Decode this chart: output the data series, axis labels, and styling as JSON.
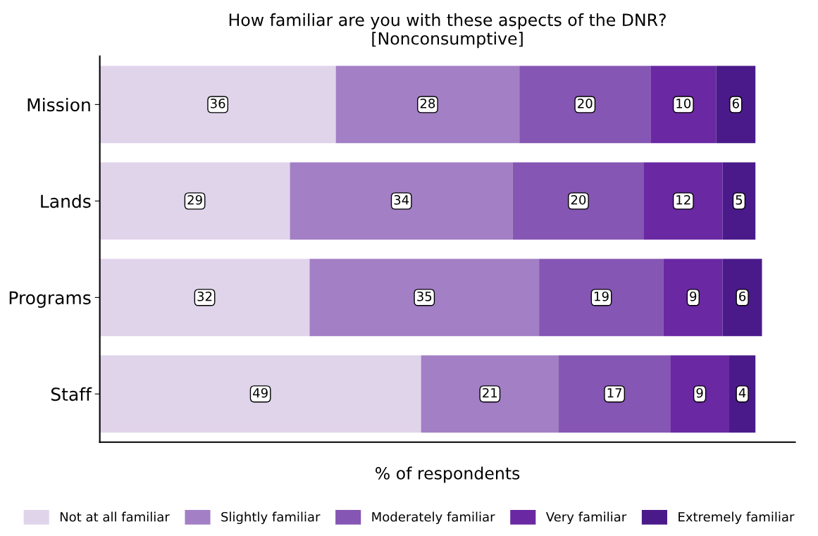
{
  "chart_data": {
    "type": "bar",
    "orientation": "horizontal",
    "stacked": true,
    "data_labels": true,
    "title": "How familiar are you with these aspects of the DNR?\n[Nonconsumptive]",
    "xlabel": "% of respondents",
    "categories": [
      "Mission",
      "Lands",
      "Programs",
      "Staff"
    ],
    "series": [
      {
        "name": "Not at all familiar",
        "color": "#e0d4eb",
        "values": [
          36,
          29,
          32,
          49
        ]
      },
      {
        "name": "Slightly familiar",
        "color": "#a37fc5",
        "values": [
          28,
          34,
          35,
          21
        ]
      },
      {
        "name": "Moderately familiar",
        "color": "#8556b3",
        "values": [
          20,
          20,
          19,
          17
        ]
      },
      {
        "name": "Very familiar",
        "color": "#6a28a3",
        "values": [
          10,
          12,
          9,
          9
        ]
      },
      {
        "name": "Extremely familiar",
        "color": "#4a1a8a",
        "values": [
          6,
          5,
          6,
          4
        ]
      }
    ],
    "legend": "bottom",
    "tick_labels": "y",
    "grid": false
  }
}
